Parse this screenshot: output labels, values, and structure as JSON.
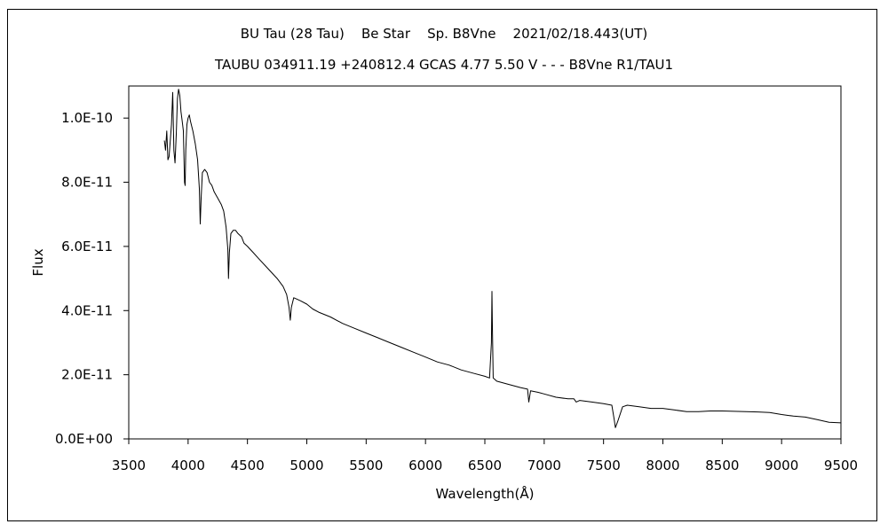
{
  "chart_data": {
    "type": "line",
    "title": "BU Tau (28 Tau)    Be Star    Sp. B8Vne    2021/02/18.443(UT)",
    "subtitle": "TAUBU 034911.19 +240812.4 GCAS 4.77 5.50 V - - - B8Vne R1/TAU1",
    "xlabel": "Wavelength(Å)",
    "ylabel": "Flux",
    "xlim": [
      3500,
      9500
    ],
    "ylim": [
      0,
      1.1e-10
    ],
    "x_ticks": [
      3500,
      4000,
      4500,
      5000,
      5500,
      6000,
      6500,
      7000,
      7500,
      8000,
      8500,
      9000,
      9500
    ],
    "x_tick_labels": [
      "3500",
      "4000",
      "4500",
      "5000",
      "5500",
      "6000",
      "6500",
      "7000",
      "7500",
      "8000",
      "8500",
      "9000",
      "9500"
    ],
    "y_ticks": [
      0,
      2e-11,
      4e-11,
      6e-11,
      8e-11,
      1e-10
    ],
    "y_tick_labels": [
      "0.0E+00",
      "2.0E-11",
      "4.0E-11",
      "6.0E-11",
      "8.0E-11",
      "1.0E-10"
    ],
    "grid": false,
    "series": [
      {
        "color": "#000000",
        "points": [
          [
            3800,
            9.3e-11
          ],
          [
            3810,
            9e-11
          ],
          [
            3820,
            9.6e-11
          ],
          [
            3830,
            8.7e-11
          ],
          [
            3840,
            8.8e-11
          ],
          [
            3860,
            9.8e-11
          ],
          [
            3870,
            1.08e-10
          ],
          [
            3880,
            9e-11
          ],
          [
            3890,
            8.6e-11
          ],
          [
            3900,
            9.5e-11
          ],
          [
            3910,
            1.06e-10
          ],
          [
            3920,
            1.09e-10
          ],
          [
            3930,
            1.07e-10
          ],
          [
            3940,
            1.02e-10
          ],
          [
            3950,
            9.9e-11
          ],
          [
            3960,
            9.6e-11
          ],
          [
            3970,
            8e-11
          ],
          [
            3975,
            7.9e-11
          ],
          [
            3980,
            9e-11
          ],
          [
            3990,
            9.8e-11
          ],
          [
            4000,
            1e-10
          ],
          [
            4010,
            1.01e-10
          ],
          [
            4020,
            9.9e-11
          ],
          [
            4040,
            9.6e-11
          ],
          [
            4060,
            9.2e-11
          ],
          [
            4080,
            8.7e-11
          ],
          [
            4095,
            7.8e-11
          ],
          [
            4102,
            6.7e-11
          ],
          [
            4110,
            7.5e-11
          ],
          [
            4120,
            8.3e-11
          ],
          [
            4140,
            8.4e-11
          ],
          [
            4160,
            8.3e-11
          ],
          [
            4180,
            8e-11
          ],
          [
            4200,
            7.9e-11
          ],
          [
            4220,
            7.7e-11
          ],
          [
            4250,
            7.5e-11
          ],
          [
            4280,
            7.3e-11
          ],
          [
            4300,
            7.1e-11
          ],
          [
            4320,
            6.6e-11
          ],
          [
            4335,
            5.9e-11
          ],
          [
            4340,
            5e-11
          ],
          [
            4348,
            5.8e-11
          ],
          [
            4360,
            6.4e-11
          ],
          [
            4380,
            6.5e-11
          ],
          [
            4400,
            6.5e-11
          ],
          [
            4420,
            6.4e-11
          ],
          [
            4450,
            6.3e-11
          ],
          [
            4471,
            6.1e-11
          ],
          [
            4500,
            6e-11
          ],
          [
            4550,
            5.8e-11
          ],
          [
            4600,
            5.6e-11
          ],
          [
            4650,
            5.4e-11
          ],
          [
            4700,
            5.2e-11
          ],
          [
            4750,
            5e-11
          ],
          [
            4800,
            4.75e-11
          ],
          [
            4830,
            4.5e-11
          ],
          [
            4850,
            4.1e-11
          ],
          [
            4861,
            3.7e-11
          ],
          [
            4870,
            4.1e-11
          ],
          [
            4890,
            4.4e-11
          ],
          [
            4920,
            4.35e-11
          ],
          [
            4950,
            4.3e-11
          ],
          [
            5000,
            4.2e-11
          ],
          [
            5050,
            4.05e-11
          ],
          [
            5100,
            3.95e-11
          ],
          [
            5200,
            3.8e-11
          ],
          [
            5300,
            3.6e-11
          ],
          [
            5400,
            3.45e-11
          ],
          [
            5500,
            3.3e-11
          ],
          [
            5600,
            3.15e-11
          ],
          [
            5700,
            3e-11
          ],
          [
            5800,
            2.85e-11
          ],
          [
            5900,
            2.7e-11
          ],
          [
            6000,
            2.55e-11
          ],
          [
            6100,
            2.4e-11
          ],
          [
            6200,
            2.3e-11
          ],
          [
            6300,
            2.15e-11
          ],
          [
            6400,
            2.05e-11
          ],
          [
            6500,
            1.95e-11
          ],
          [
            6540,
            1.9e-11
          ],
          [
            6555,
            3e-11
          ],
          [
            6560,
            4.6e-11
          ],
          [
            6563,
            3.7e-11
          ],
          [
            6570,
            1.9e-11
          ],
          [
            6600,
            1.8e-11
          ],
          [
            6700,
            1.7e-11
          ],
          [
            6800,
            1.6e-11
          ],
          [
            6860,
            1.55e-11
          ],
          [
            6870,
            1.15e-11
          ],
          [
            6885,
            1.5e-11
          ],
          [
            6950,
            1.45e-11
          ],
          [
            7000,
            1.4e-11
          ],
          [
            7100,
            1.3e-11
          ],
          [
            7200,
            1.25e-11
          ],
          [
            7250,
            1.25e-11
          ],
          [
            7270,
            1.15e-11
          ],
          [
            7300,
            1.2e-11
          ],
          [
            7400,
            1.15e-11
          ],
          [
            7500,
            1.1e-11
          ],
          [
            7570,
            1.05e-11
          ],
          [
            7590,
            6e-12
          ],
          [
            7600,
            3.5e-12
          ],
          [
            7620,
            5.5e-12
          ],
          [
            7660,
            1e-11
          ],
          [
            7700,
            1.05e-11
          ],
          [
            7800,
            1e-11
          ],
          [
            7900,
            9.5e-12
          ],
          [
            8000,
            9.5e-12
          ],
          [
            8100,
            9e-12
          ],
          [
            8200,
            8.5e-12
          ],
          [
            8300,
            8.5e-12
          ],
          [
            8400,
            8.7e-12
          ],
          [
            8500,
            8.7e-12
          ],
          [
            8600,
            8.6e-12
          ],
          [
            8700,
            8.5e-12
          ],
          [
            8800,
            8.4e-12
          ],
          [
            8900,
            8.2e-12
          ],
          [
            9000,
            7.6e-12
          ],
          [
            9100,
            7.1e-12
          ],
          [
            9200,
            6.8e-12
          ],
          [
            9300,
            6e-12
          ],
          [
            9400,
            5.2e-12
          ],
          [
            9500,
            5e-12
          ]
        ]
      }
    ]
  }
}
